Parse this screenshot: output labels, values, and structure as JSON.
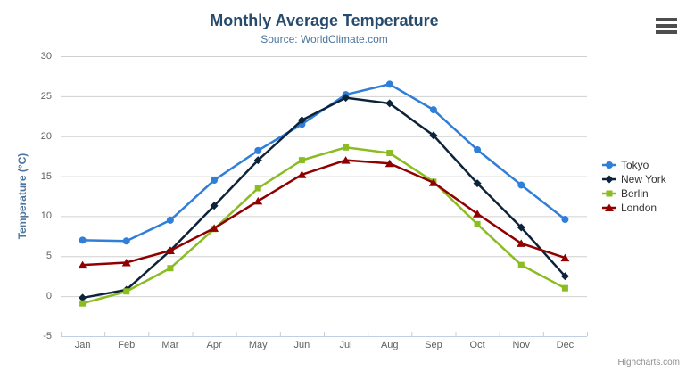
{
  "chart": {
    "credits": "Highcharts.com",
    "colors": {
      "title_text": "#274b6d",
      "subtitle_text": "#4d759e",
      "axis_title_text": "#4d759e",
      "axis_label_text": "#606060",
      "grid_line": "#d0d0d0",
      "axis_line": "#c0d0e0",
      "legend_text": "#333333",
      "credits_text": "#909090",
      "menu_icon": "#4d4d4d",
      "background": "#ffffff"
    }
  },
  "chart_data": {
    "type": "line",
    "title": "Monthly Average Temperature",
    "subtitle": "Source: WorldClimate.com",
    "xlabel": "",
    "ylabel": "Temperature (°C)",
    "ylim": [
      -5,
      30
    ],
    "ytick_step": 5,
    "grid": true,
    "legend_position": "right",
    "categories": [
      "Jan",
      "Feb",
      "Mar",
      "Apr",
      "May",
      "Jun",
      "Jul",
      "Aug",
      "Sep",
      "Oct",
      "Nov",
      "Dec"
    ],
    "series": [
      {
        "name": "Tokyo",
        "color": "#2f7ed8",
        "marker": "circle",
        "values": [
          7.0,
          6.9,
          9.5,
          14.5,
          18.2,
          21.5,
          25.2,
          26.5,
          23.3,
          18.3,
          13.9,
          9.6
        ]
      },
      {
        "name": "New York",
        "color": "#0d233a",
        "marker": "diamond",
        "values": [
          -0.2,
          0.8,
          5.7,
          11.3,
          17.0,
          22.0,
          24.8,
          24.1,
          20.1,
          14.1,
          8.6,
          2.5
        ]
      },
      {
        "name": "Berlin",
        "color": "#8bbc21",
        "marker": "square",
        "values": [
          -0.9,
          0.6,
          3.5,
          8.4,
          13.5,
          17.0,
          18.6,
          17.9,
          14.3,
          9.0,
          3.9,
          1.0
        ]
      },
      {
        "name": "London",
        "color": "#910000",
        "marker": "triangle",
        "values": [
          3.9,
          4.2,
          5.7,
          8.5,
          11.9,
          15.2,
          17.0,
          16.6,
          14.2,
          10.3,
          6.6,
          4.8
        ]
      }
    ]
  }
}
